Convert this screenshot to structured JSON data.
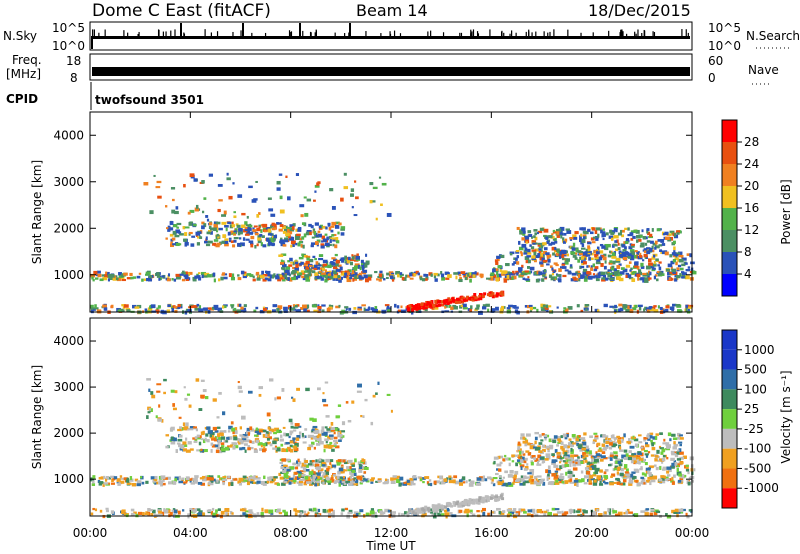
{
  "header": {
    "title": "Dome C East (fitACF)",
    "beam": "Beam 14",
    "date": "18/Dec/2015"
  },
  "status_panels": {
    "nsky_label": "N.Sky",
    "nsearch_label": "N.Search",
    "noise_ticks_left": [
      "10^5",
      "10^0"
    ],
    "noise_ticks_right": [
      "10^5",
      "10^0"
    ],
    "freq_label_line1": "Freq.",
    "freq_label_line2": "[MHz]",
    "freq_ticks": [
      "18",
      "8"
    ],
    "nave_label": "Nave",
    "nave_ticks": [
      "60",
      "0"
    ],
    "cpid_label": "CPID",
    "cpid_value": "twofsound 3501"
  },
  "chart_data": [
    {
      "type": "heatmap",
      "title": "",
      "ylabel": "Slant Range [km]",
      "yticks": [
        "1000",
        "2000",
        "3000",
        "4000"
      ],
      "ylim": [
        200,
        4500
      ],
      "colorbar": {
        "label": "Power [dB]",
        "ticks": [
          "4",
          "8",
          "12",
          "16",
          "20",
          "24",
          "28"
        ],
        "range": [
          0,
          30
        ],
        "colors": [
          "#0000ff",
          "#2a52b8",
          "#4b8f63",
          "#52b24a",
          "#f0c020",
          "#f08020",
          "#e85010",
          "#ff0000"
        ]
      }
    },
    {
      "type": "heatmap",
      "title": "",
      "ylabel": "Slant Range [km]",
      "yticks": [
        "1000",
        "2000",
        "3000",
        "4000"
      ],
      "ylim": [
        200,
        4500
      ],
      "colorbar": {
        "label": "Velocity [m s⁻¹]",
        "ticks": [
          "1000",
          "500",
          "100",
          "25",
          "-25",
          "-100",
          "-500",
          "-1000"
        ],
        "colors": [
          "#1a37c8",
          "#2f6ea8",
          "#3e8a5e",
          "#6fcf3d",
          "#bdbdbd",
          "#f0a020",
          "#f07010",
          "#ff0000"
        ]
      }
    }
  ],
  "xaxis": {
    "label": "Time UT",
    "ticks": [
      "00:00",
      "04:00",
      "08:00",
      "12:00",
      "16:00",
      "20:00",
      "00:00"
    ]
  }
}
